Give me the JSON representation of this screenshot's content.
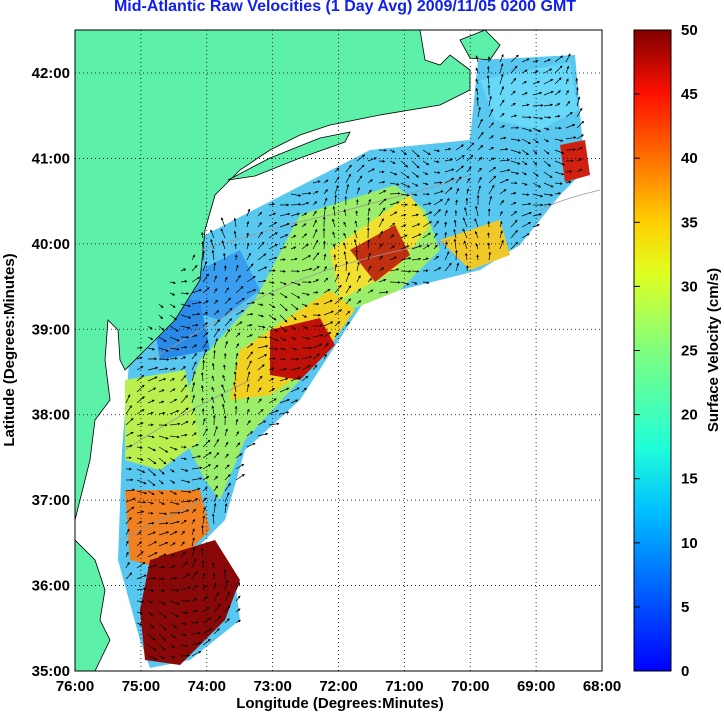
{
  "title": "Mid-Atlantic Raw Velocities (1 Day Avg) 2009/11/05 0200 GMT",
  "map": {
    "xlabel": "Longitude (Degrees:Minutes)",
    "ylabel": "Latitude (Degrees:Minutes)",
    "lon_ticks": [
      "76:00",
      "75:00",
      "74:00",
      "73:00",
      "72:00",
      "71:00",
      "70:00",
      "69:00",
      "68:00"
    ],
    "lat_ticks": [
      "42:00",
      "41:00",
      "40:00",
      "39:00",
      "38:00",
      "37:00",
      "36:00",
      "35:00"
    ],
    "land_color": "#5cf0a8",
    "grid": "dotted"
  },
  "colorbar": {
    "label": "Surface Velocity (cm/s)",
    "ticks": [
      "50",
      "45",
      "40",
      "35",
      "30",
      "25",
      "20",
      "15",
      "10",
      "5",
      "0"
    ],
    "range": [
      0,
      50
    ],
    "colormap": "jet"
  }
}
